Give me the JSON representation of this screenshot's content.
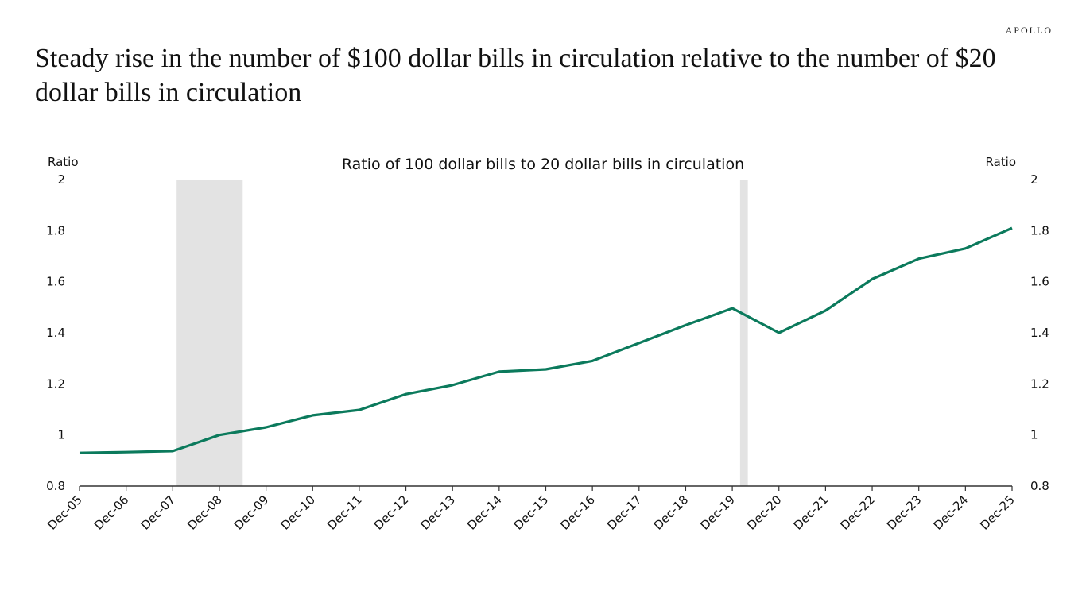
{
  "brand": "APOLLO",
  "title": "Steady rise in the number of $100 dollar bills in circulation relative to the number of $20 dollar bills in circulation",
  "chart_data": {
    "type": "line",
    "title": "Ratio of 100 dollar bills to 20 dollar bills in circulation",
    "ylabel_left": "Ratio",
    "ylabel_right": "Ratio",
    "ylim": [
      0.8,
      2
    ],
    "yticks": [
      "0.8",
      "1",
      "1.2",
      "1.4",
      "1.6",
      "1.8",
      "2"
    ],
    "grid": false,
    "categories": [
      "Dec-05",
      "Dec-06",
      "Dec-07",
      "Dec-08",
      "Dec-09",
      "Dec-10",
      "Dec-11",
      "Dec-12",
      "Dec-13",
      "Dec-14",
      "Dec-15",
      "Dec-16",
      "Dec-17",
      "Dec-18",
      "Dec-19",
      "Dec-20",
      "Dec-21",
      "Dec-22",
      "Dec-23",
      "Dec-24",
      "Dec-25"
    ],
    "values": [
      0.93,
      0.933,
      0.937,
      1.0,
      1.03,
      1.077,
      1.098,
      1.16,
      1.195,
      1.248,
      1.257,
      1.29,
      1.36,
      1.43,
      1.496,
      1.4,
      1.487,
      1.61,
      1.69,
      1.73,
      1.81
    ],
    "recessions": [
      [
        "2008-01",
        "2009-06"
      ],
      [
        "2020-02",
        "2020-04"
      ]
    ],
    "colors": {
      "line": "#0b7a5c",
      "recession": "#e3e3e3",
      "axis": "#333333"
    }
  }
}
